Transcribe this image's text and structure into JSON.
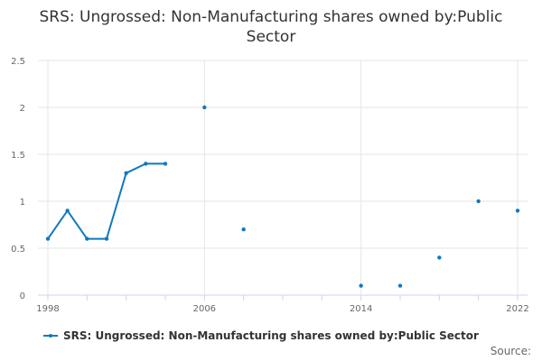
{
  "colors": {
    "series": "#0f79bd",
    "grid": "#e6e6e6",
    "axis": "#ccd6eb",
    "text": "#333333",
    "tick_text": "#666666"
  },
  "chart_data": {
    "type": "line",
    "title": "SRS: Ungrossed: Non-Manufacturing shares owned by:Public Sector",
    "title_lines": [
      "SRS: Ungrossed: Non-Manufacturing shares owned by:Public",
      "Sector"
    ],
    "xlabel": "",
    "ylabel": "",
    "xlim": [
      1998,
      2022
    ],
    "ylim": [
      0,
      2.5
    ],
    "grid": true,
    "x_ticks": [
      1998,
      2000,
      2002,
      2004,
      2006,
      2008,
      2010,
      2012,
      2014,
      2016,
      2018,
      2020,
      2022
    ],
    "x_tick_labels": [
      {
        "value": 1998,
        "label": "1998"
      },
      {
        "value": 2006,
        "label": "2006"
      },
      {
        "value": 2014,
        "label": "2014"
      },
      {
        "value": 2022,
        "label": "2022"
      }
    ],
    "y_ticks": [
      {
        "value": 0,
        "label": "0"
      },
      {
        "value": 0.5,
        "label": "0.5"
      },
      {
        "value": 1,
        "label": "1"
      },
      {
        "value": 1.5,
        "label": "1.5"
      },
      {
        "value": 2,
        "label": "2"
      },
      {
        "value": 2.5,
        "label": "2.5"
      }
    ],
    "series": [
      {
        "name": "SRS: Ungrossed: Non-Manufacturing shares owned by:Public Sector",
        "x": [
          1998,
          1999,
          2000,
          2001,
          2002,
          2003,
          2004,
          2005,
          2006,
          2007,
          2008,
          2009,
          2010,
          2011,
          2012,
          2013,
          2014,
          2015,
          2016,
          2017,
          2018,
          2019,
          2020,
          2021,
          2022
        ],
        "values": [
          0.6,
          0.9,
          0.6,
          0.6,
          1.3,
          1.4,
          1.4,
          null,
          2.0,
          null,
          0.7,
          null,
          null,
          null,
          null,
          null,
          0.1,
          null,
          0.1,
          null,
          0.4,
          null,
          1.0,
          null,
          0.9
        ]
      }
    ],
    "legend": {
      "label": "SRS: Ungrossed: Non-Manufacturing shares owned by:Public Sector",
      "position": "bottom-left"
    }
  },
  "source": {
    "label": "Source:"
  }
}
